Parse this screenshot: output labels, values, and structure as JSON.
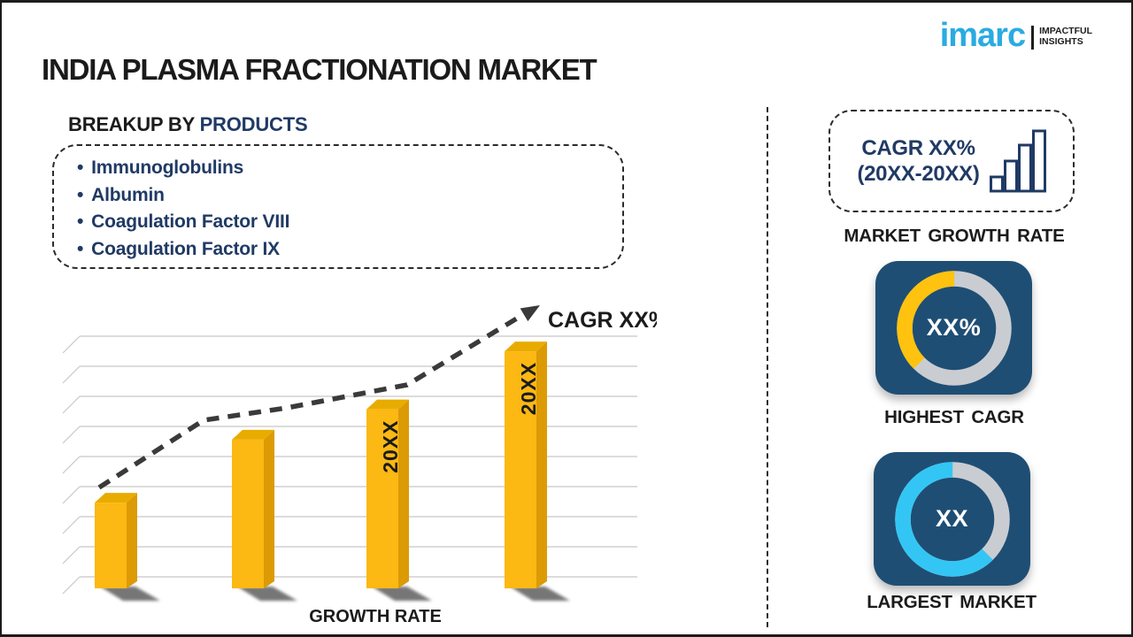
{
  "page": {
    "title": "INDIA PLASMA FRACTIONATION MARKET"
  },
  "logo": {
    "brand": "imarc",
    "tagline_line1": "IMPACTFUL",
    "tagline_line2": "INSIGHTS",
    "brand_color": "#29ABE2"
  },
  "breakup": {
    "heading_prefix": "BREAKUP BY ",
    "heading_highlight": "PRODUCTS",
    "items": [
      "Immunoglobulins",
      "Albumin",
      "Coagulation Factor VIII",
      "Coagulation Factor IX"
    ]
  },
  "chart_data": {
    "type": "bar",
    "title": "",
    "xlabel": "GROWTH RATE",
    "ylabel": "",
    "categories": [
      "",
      "",
      "20XX",
      "20XX"
    ],
    "values": [
      34,
      59,
      71,
      94
    ],
    "ylim": [
      0,
      100
    ],
    "grid": "horizontal",
    "trend_label": "CAGR XX%",
    "trend": "dashed rising arrow above bars",
    "bar_color": "#FCB813",
    "bar_side_color": "#DC9A05",
    "bar_top_color": "#E8AC00",
    "label_color": "#1b1b1b"
  },
  "right_panel": {
    "growth_box": {
      "line1": "CAGR XX%",
      "line2": "(20XX-20XX)",
      "icon": "growing-bars-icon",
      "accent_color": "#203A64"
    },
    "growth_caption": "MARKET GROWTH RATE",
    "highest_cagr": {
      "value_label": "XX%",
      "caption": "HIGHEST CAGR",
      "card_color": "#1F4E74",
      "donut": {
        "filled_pct": 37.5,
        "fill_color": "#FFC20E",
        "track_color": "#C9CDD2"
      }
    },
    "largest_market": {
      "value_label": "XX",
      "caption": "LARGEST MARKET",
      "card_color": "#1F4E74",
      "donut": {
        "filled_pct": 62.5,
        "fill_color": "#33C6F4",
        "track_color": "#C9CDD2"
      }
    }
  }
}
